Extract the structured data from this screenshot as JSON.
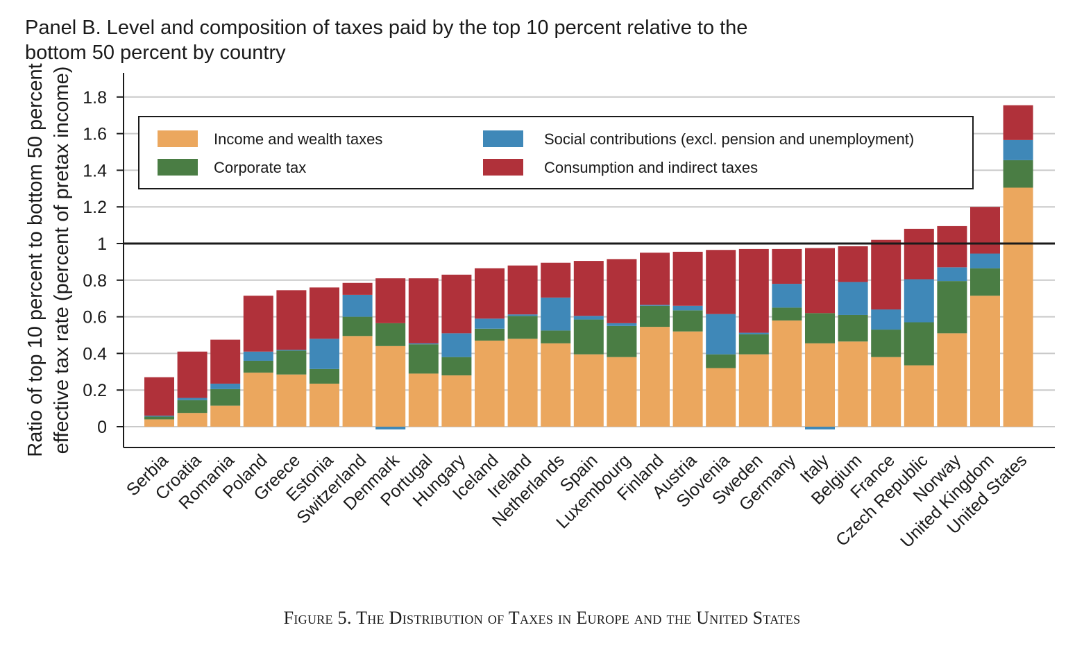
{
  "panel_title": "Panel B. Level and composition of taxes paid by the top 10 percent relative to the\nbottom 50 percent by country",
  "caption": "Figure 5.  The Distribution of Taxes in Europe and the United States",
  "chart_data": {
    "type": "bar",
    "stacked": true,
    "title": "Panel B. Level and composition of taxes paid by the top 10 percent relative to the bottom 50 percent by country",
    "xlabel": "",
    "ylabel": "Ratio of top 10 percent to bottom 50 percent effective tax rate (percent of pretax income)",
    "ylabel_lines": [
      "Ratio of top 10 percent to bottom 50 percent",
      "effective tax rate (percent of pretax income)"
    ],
    "ylim": [
      -0.1,
      1.9
    ],
    "yticks": [
      0,
      0.2,
      0.4,
      0.6,
      0.8,
      1,
      1.2,
      1.4,
      1.6,
      1.8
    ],
    "ytick_labels": [
      "0",
      "0.2",
      "0.4",
      "0.6",
      "0.8",
      "1",
      "1.2",
      "1.4",
      "1.6",
      "1.8"
    ],
    "grid": true,
    "reference_line": 1,
    "legend_position": "top-left",
    "categories": [
      "Serbia",
      "Croatia",
      "Romania",
      "Poland",
      "Greece",
      "Estonia",
      "Switzerland",
      "Denmark",
      "Portugal",
      "Hungary",
      "Iceland",
      "Ireland",
      "Netherlands",
      "Spain",
      "Luxembourg",
      "Finland",
      "Austria",
      "Slovenia",
      "Sweden",
      "Germany",
      "Italy",
      "Belgium",
      "France",
      "Czech Republic",
      "Norway",
      "United Kingdom",
      "United States"
    ],
    "series": [
      {
        "name": "Income and wealth taxes",
        "color": "#EBA75E",
        "values": [
          0.04,
          0.075,
          0.115,
          0.295,
          0.285,
          0.235,
          0.495,
          0.44,
          0.29,
          0.28,
          0.47,
          0.48,
          0.455,
          0.395,
          0.38,
          0.545,
          0.52,
          0.32,
          0.395,
          0.58,
          0.455,
          0.465,
          0.38,
          0.335,
          0.51,
          0.715,
          1.305
        ]
      },
      {
        "name": "Corporate tax",
        "color": "#4A7D44",
        "values": [
          0.015,
          0.07,
          0.09,
          0.065,
          0.13,
          0.08,
          0.105,
          0.125,
          0.16,
          0.1,
          0.065,
          0.125,
          0.07,
          0.19,
          0.17,
          0.115,
          0.115,
          0.075,
          0.11,
          0.07,
          0.165,
          0.145,
          0.15,
          0.235,
          0.285,
          0.15,
          0.15
        ]
      },
      {
        "name": "Social contributions (excl. pension and unemployment)",
        "color": "#3F88B8",
        "values": [
          0.005,
          0.012,
          0.03,
          0.05,
          0.005,
          0.165,
          0.12,
          -0.015,
          0.005,
          0.13,
          0.055,
          0.008,
          0.18,
          0.02,
          0.015,
          0.005,
          0.025,
          0.22,
          0.008,
          0.13,
          -0.015,
          0.18,
          0.11,
          0.235,
          0.075,
          0.08,
          0.11
        ]
      },
      {
        "name": "Consumption and indirect taxes",
        "color": "#B0313A",
        "values": [
          0.21,
          0.253,
          0.24,
          0.305,
          0.325,
          0.28,
          0.065,
          0.245,
          0.355,
          0.32,
          0.275,
          0.267,
          0.19,
          0.3,
          0.35,
          0.285,
          0.295,
          0.35,
          0.457,
          0.19,
          0.355,
          0.195,
          0.38,
          0.275,
          0.225,
          0.255,
          0.19
        ]
      }
    ],
    "totals": [
      0.27,
      0.41,
      0.475,
      0.715,
      0.745,
      0.76,
      0.785,
      0.81,
      0.81,
      0.83,
      0.865,
      0.88,
      0.895,
      0.905,
      0.915,
      0.95,
      0.955,
      0.965,
      0.97,
      0.97,
      0.975,
      0.985,
      1.02,
      1.08,
      1.095,
      1.2,
      1.755
    ]
  }
}
